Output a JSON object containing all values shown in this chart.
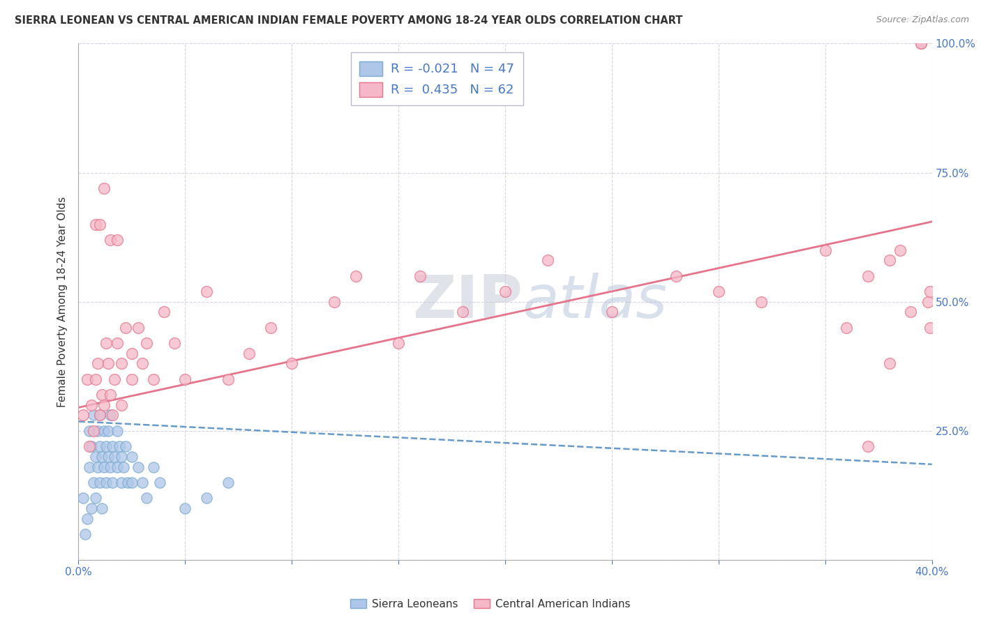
{
  "title": "SIERRA LEONEAN VS CENTRAL AMERICAN INDIAN FEMALE POVERTY AMONG 18-24 YEAR OLDS CORRELATION CHART",
  "source": "Source: ZipAtlas.com",
  "ylabel": "Female Poverty Among 18-24 Year Olds",
  "xlim": [
    0.0,
    0.4
  ],
  "ylim": [
    0.0,
    1.0
  ],
  "xticks": [
    0.0,
    0.05,
    0.1,
    0.15,
    0.2,
    0.25,
    0.3,
    0.35,
    0.4
  ],
  "yticks": [
    0.0,
    0.25,
    0.5,
    0.75,
    1.0
  ],
  "blue_R": -0.021,
  "blue_N": 47,
  "pink_R": 0.435,
  "pink_N": 62,
  "blue_color": "#aec6e8",
  "pink_color": "#f5b8c8",
  "blue_edge_color": "#7aaad0",
  "pink_edge_color": "#e8728a",
  "blue_line_color": "#6699cc",
  "pink_line_color": "#e8728a",
  "watermark_zip": "ZIP",
  "watermark_atlas": "atlas",
  "legend_label_blue": "Sierra Leoneans",
  "legend_label_pink": "Central American Indians",
  "blue_scatter_x": [
    0.002,
    0.003,
    0.004,
    0.005,
    0.005,
    0.006,
    0.006,
    0.007,
    0.007,
    0.008,
    0.008,
    0.009,
    0.009,
    0.01,
    0.01,
    0.01,
    0.011,
    0.011,
    0.012,
    0.012,
    0.013,
    0.013,
    0.014,
    0.014,
    0.015,
    0.015,
    0.016,
    0.016,
    0.017,
    0.018,
    0.018,
    0.019,
    0.02,
    0.02,
    0.021,
    0.022,
    0.023,
    0.025,
    0.025,
    0.028,
    0.03,
    0.032,
    0.035,
    0.038,
    0.05,
    0.06,
    0.07
  ],
  "blue_scatter_y": [
    0.12,
    0.05,
    0.08,
    0.18,
    0.25,
    0.1,
    0.22,
    0.15,
    0.28,
    0.2,
    0.12,
    0.25,
    0.18,
    0.22,
    0.28,
    0.15,
    0.2,
    0.1,
    0.25,
    0.18,
    0.22,
    0.15,
    0.25,
    0.2,
    0.18,
    0.28,
    0.22,
    0.15,
    0.2,
    0.25,
    0.18,
    0.22,
    0.2,
    0.15,
    0.18,
    0.22,
    0.15,
    0.2,
    0.15,
    0.18,
    0.15,
    0.12,
    0.18,
    0.15,
    0.1,
    0.12,
    0.15
  ],
  "pink_scatter_x": [
    0.002,
    0.004,
    0.005,
    0.006,
    0.007,
    0.008,
    0.008,
    0.009,
    0.01,
    0.01,
    0.011,
    0.012,
    0.012,
    0.013,
    0.014,
    0.015,
    0.015,
    0.016,
    0.017,
    0.018,
    0.018,
    0.02,
    0.02,
    0.022,
    0.025,
    0.025,
    0.028,
    0.03,
    0.032,
    0.035,
    0.04,
    0.045,
    0.05,
    0.06,
    0.07,
    0.08,
    0.09,
    0.1,
    0.12,
    0.13,
    0.15,
    0.16,
    0.18,
    0.2,
    0.22,
    0.25,
    0.28,
    0.3,
    0.32,
    0.35,
    0.36,
    0.37,
    0.37,
    0.38,
    0.38,
    0.385,
    0.39,
    0.395,
    0.395,
    0.398,
    0.399,
    0.399
  ],
  "pink_scatter_y": [
    0.28,
    0.35,
    0.22,
    0.3,
    0.25,
    0.35,
    0.65,
    0.38,
    0.28,
    0.65,
    0.32,
    0.3,
    0.72,
    0.42,
    0.38,
    0.32,
    0.62,
    0.28,
    0.35,
    0.42,
    0.62,
    0.38,
    0.3,
    0.45,
    0.4,
    0.35,
    0.45,
    0.38,
    0.42,
    0.35,
    0.48,
    0.42,
    0.35,
    0.52,
    0.35,
    0.4,
    0.45,
    0.38,
    0.5,
    0.55,
    0.42,
    0.55,
    0.48,
    0.52,
    0.58,
    0.48,
    0.55,
    0.52,
    0.5,
    0.6,
    0.45,
    0.55,
    0.22,
    0.58,
    0.38,
    0.6,
    0.48,
    1.0,
    1.0,
    0.5,
    0.45,
    0.52
  ],
  "blue_trend_x0": 0.0,
  "blue_trend_y0": 0.268,
  "blue_trend_x1": 0.4,
  "blue_trend_y1": 0.185,
  "pink_trend_x0": 0.0,
  "pink_trend_y0": 0.295,
  "pink_trend_x1": 0.4,
  "pink_trend_y1": 0.655
}
